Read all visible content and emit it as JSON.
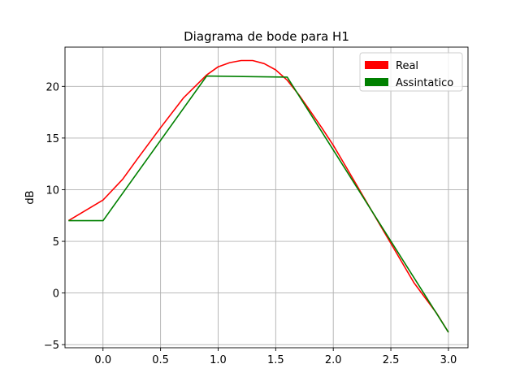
{
  "chart_data": {
    "type": "line",
    "title": "Diagrama de bode para H1",
    "xlabel": "",
    "ylabel": "dB",
    "xlim": [
      -0.33,
      3.17
    ],
    "ylim": [
      -5.3,
      23.8
    ],
    "xticks": [
      0.0,
      0.5,
      1.0,
      1.5,
      2.0,
      2.5,
      3.0
    ],
    "xtick_labels": [
      "0.0",
      "0.5",
      "1.0",
      "1.5",
      "2.0",
      "2.5",
      "3.0"
    ],
    "yticks": [
      -5,
      0,
      5,
      10,
      15,
      20
    ],
    "ytick_labels": [
      "−5",
      "0",
      "5",
      "10",
      "15",
      "20"
    ],
    "grid": true,
    "legend_position": "top-right",
    "series": [
      {
        "name": "Real",
        "color": "#ff0000",
        "x": [
          -0.3,
          0.0,
          0.17,
          0.3,
          0.5,
          0.7,
          0.9,
          1.0,
          1.1,
          1.2,
          1.25,
          1.3,
          1.4,
          1.5,
          1.6,
          1.7,
          1.8,
          1.9,
          2.0,
          2.1,
          2.3,
          2.5,
          2.7,
          2.9,
          3.0
        ],
        "y": [
          7.0,
          9.0,
          11.0,
          13.0,
          16.0,
          18.9,
          21.1,
          21.9,
          22.3,
          22.5,
          22.5,
          22.5,
          22.2,
          21.6,
          20.6,
          19.2,
          17.6,
          16.0,
          14.3,
          12.4,
          8.6,
          4.8,
          1.0,
          -2.0,
          -3.8
        ]
      },
      {
        "name": "Assintatico",
        "color": "#008000",
        "x": [
          -0.3,
          0.0,
          0.9,
          1.6,
          3.0
        ],
        "y": [
          7.0,
          7.0,
          21.0,
          20.9,
          -3.8
        ]
      }
    ]
  }
}
